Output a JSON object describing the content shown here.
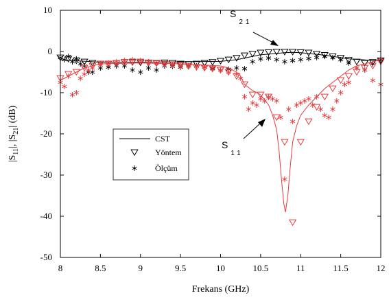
{
  "chart_data": {
    "type": "line",
    "xlabel": "Frekans (GHz)",
    "ylabel": {
      "parts": [
        "|S",
        "11",
        "|, |S",
        "21",
        "| (dB)"
      ]
    },
    "xlim": [
      8,
      12
    ],
    "ylim": [
      -50,
      10
    ],
    "xticks": [
      8,
      8.5,
      9,
      9.5,
      10,
      10.5,
      11,
      11.5,
      12
    ],
    "yticks": [
      10,
      0,
      -10,
      -20,
      -30,
      -40,
      -50
    ],
    "xtick_labels": [
      "8",
      "8.5",
      "9",
      "9.5",
      "10",
      "10.5",
      "11",
      "11.5",
      "12"
    ],
    "ytick_labels": [
      "10",
      "0",
      "-10",
      "-20",
      "-30",
      "-40",
      "-50"
    ],
    "grid": false,
    "legend": {
      "placement": "center-left",
      "entries": [
        {
          "label": "CST",
          "marker": "line"
        },
        {
          "label": "Yöntem",
          "marker": "triangle-down"
        },
        {
          "label": "Ölçüm",
          "marker": "asterisk"
        }
      ]
    },
    "annotations": [
      {
        "base": "S",
        "sub": "21"
      },
      {
        "base": "S",
        "sub": "11"
      }
    ],
    "colors": {
      "s11": "#e8383b",
      "s21": "#000000"
    },
    "series": [
      {
        "key": "s21_cst",
        "marker": "line",
        "x": [
          8.0,
          8.5,
          9.0,
          9.5,
          10.0,
          10.2,
          10.5,
          10.8,
          10.9,
          11.0,
          11.3,
          11.6,
          12.0
        ],
        "y": [
          -2.0,
          -2.6,
          -2.6,
          -2.5,
          -2.4,
          -2.0,
          -0.8,
          -0.3,
          -0.2,
          -0.3,
          -0.9,
          -1.8,
          -2.3
        ]
      },
      {
        "key": "s21_yontem",
        "marker": "triangle-down",
        "x": [
          8.0,
          8.1,
          8.2,
          8.3,
          8.4,
          8.5,
          8.6,
          8.7,
          8.8,
          8.9,
          9.0,
          9.1,
          9.2,
          9.3,
          9.4,
          9.5,
          9.6,
          9.7,
          9.8,
          9.9,
          10.0,
          10.1,
          10.2,
          10.3,
          10.4,
          10.5,
          10.6,
          10.7,
          10.8,
          10.9,
          11.0,
          11.1,
          11.2,
          11.3,
          11.4,
          11.5,
          11.6,
          11.7,
          11.8,
          11.9,
          12.0
        ],
        "y": [
          -1.5,
          -1.8,
          -2.2,
          -2.5,
          -2.8,
          -3.0,
          -3.0,
          -2.8,
          -2.6,
          -2.6,
          -2.7,
          -2.8,
          -2.8,
          -2.7,
          -2.8,
          -3.0,
          -3.1,
          -3.0,
          -2.8,
          -2.6,
          -2.3,
          -2.0,
          -1.6,
          -1.0,
          -0.6,
          -0.3,
          -0.2,
          -0.1,
          -0.1,
          -0.1,
          -0.2,
          -0.3,
          -0.6,
          -0.9,
          -1.2,
          -1.6,
          -2.1,
          -2.5,
          -2.8,
          -2.6,
          -2.2
        ]
      },
      {
        "key": "s21_olcum",
        "marker": "asterisk",
        "x": [
          8.0,
          8.05,
          8.1,
          8.15,
          8.2,
          8.25,
          8.3,
          8.35,
          8.4,
          8.5,
          8.6,
          8.7,
          8.8,
          8.9,
          9.0,
          9.1,
          9.2,
          9.3,
          9.4,
          9.5,
          9.6,
          9.7,
          9.8,
          9.9,
          10.0,
          10.1,
          10.2,
          10.3,
          10.4,
          10.5,
          10.6,
          10.7,
          10.8,
          10.9,
          11.0,
          11.1,
          11.2,
          11.3,
          11.4,
          11.5,
          11.6,
          11.7,
          11.8,
          11.9,
          12.0
        ],
        "y": [
          -1.5,
          -2.0,
          -1.2,
          -2.5,
          -1.8,
          -3.0,
          -3.5,
          -5.0,
          -5.0,
          -4.0,
          -3.8,
          -3.5,
          -3.5,
          -4.5,
          -5.0,
          -4.0,
          -4.5,
          -3.5,
          -3.6,
          -3.8,
          -3.5,
          -3.5,
          -3.8,
          -4.2,
          -4.5,
          -4.3,
          -4.0,
          -4.2,
          -2.5,
          -1.8,
          -1.6,
          -2.0,
          -2.5,
          -2.2,
          -2.0,
          -1.7,
          -1.5,
          -1.2,
          -1.5,
          -2.0,
          -2.8,
          -4.0,
          -4.5,
          -3.0,
          -2.0
        ]
      },
      {
        "key": "s11_cst",
        "marker": "line",
        "x": [
          8.0,
          8.3,
          8.5,
          9.0,
          9.5,
          10.0,
          10.1,
          10.2,
          10.25,
          10.3,
          10.4,
          10.5,
          10.6,
          10.65,
          10.7,
          10.73,
          10.76,
          10.79,
          10.81,
          10.84,
          10.87,
          10.9,
          10.95,
          11.0,
          11.1,
          11.2,
          11.3,
          11.4,
          11.5,
          11.6,
          11.7,
          11.8,
          11.9,
          12.0
        ],
        "y": [
          -7.0,
          -4.0,
          -3.0,
          -2.8,
          -3.0,
          -3.5,
          -4.0,
          -5.0,
          -6.0,
          -8.0,
          -9.5,
          -10.5,
          -13.0,
          -15.5,
          -19.0,
          -24.0,
          -31.0,
          -37.0,
          -39.0,
          -35.0,
          -28.0,
          -22.0,
          -18.0,
          -15.5,
          -13.0,
          -11.0,
          -9.0,
          -7.5,
          -6.0,
          -4.5,
          -3.5,
          -3.0,
          -2.5,
          -2.0
        ]
      },
      {
        "key": "s11_yontem",
        "marker": "triangle-down",
        "x": [
          8.0,
          8.1,
          8.2,
          8.3,
          8.4,
          8.5,
          8.6,
          8.7,
          8.8,
          8.9,
          9.0,
          9.1,
          9.2,
          9.3,
          9.4,
          9.5,
          9.6,
          9.7,
          9.8,
          9.9,
          10.0,
          10.1,
          10.2,
          10.3,
          10.4,
          10.5,
          10.6,
          10.7,
          10.8,
          10.9,
          11.0,
          11.1,
          11.2,
          11.3,
          11.4,
          11.5,
          11.6,
          11.7,
          11.8,
          11.9,
          12.0
        ],
        "y": [
          -6.5,
          -5.5,
          -5.0,
          -4.0,
          -3.5,
          -3.0,
          -3.0,
          -2.8,
          -2.6,
          -2.5,
          -2.5,
          -2.7,
          -2.9,
          -3.0,
          -3.2,
          -3.4,
          -3.6,
          -3.8,
          -4.0,
          -4.2,
          -4.5,
          -5.0,
          -6.0,
          -8.0,
          -10.5,
          -10.5,
          -11.0,
          -16.0,
          -22.0,
          -41.5,
          -22.0,
          -17.0,
          -13.5,
          -11.0,
          -9.0,
          -7.0,
          -6.0,
          -5.0,
          -4.0,
          -3.5,
          -2.5
        ]
      },
      {
        "key": "s11_olcum",
        "marker": "asterisk",
        "x": [
          8.0,
          8.05,
          8.1,
          8.15,
          8.2,
          8.25,
          8.3,
          8.35,
          8.4,
          8.5,
          8.6,
          8.7,
          8.8,
          8.9,
          9.0,
          9.1,
          9.2,
          9.3,
          9.4,
          9.5,
          9.6,
          9.7,
          9.8,
          9.9,
          10.0,
          10.1,
          10.2,
          10.25,
          10.3,
          10.35,
          10.4,
          10.45,
          10.5,
          10.55,
          10.6,
          10.65,
          10.7,
          10.75,
          10.8,
          10.85,
          10.9,
          10.95,
          11.0,
          11.05,
          11.1,
          11.15,
          11.2,
          11.25,
          11.3,
          11.35,
          11.4,
          11.45,
          11.5,
          11.55,
          11.6,
          11.7,
          11.8,
          11.9,
          12.0
        ],
        "y": [
          -7.5,
          -8.5,
          -6.0,
          -10.5,
          -10.0,
          -6.5,
          -5.5,
          -4.5,
          -4.0,
          -3.0,
          -2.8,
          -2.5,
          -2.2,
          -2.0,
          -2.2,
          -2.5,
          -2.8,
          -3.0,
          -3.2,
          -3.5,
          -3.5,
          -3.6,
          -3.8,
          -4.0,
          -4.5,
          -5.0,
          -5.5,
          -6.5,
          -11.0,
          -14.0,
          -12.5,
          -13.0,
          -11.5,
          -12.0,
          -11.0,
          -11.5,
          -12.0,
          -16.0,
          -31.0,
          -14.0,
          -17.0,
          -13.0,
          -12.5,
          -12.0,
          -11.5,
          -13.0,
          -11.0,
          -14.0,
          -15.5,
          -16.0,
          -14.0,
          -12.0,
          -10.0,
          -8.0,
          -7.5,
          -4.0,
          -4.5,
          -7.0,
          -8.0
        ]
      }
    ]
  }
}
